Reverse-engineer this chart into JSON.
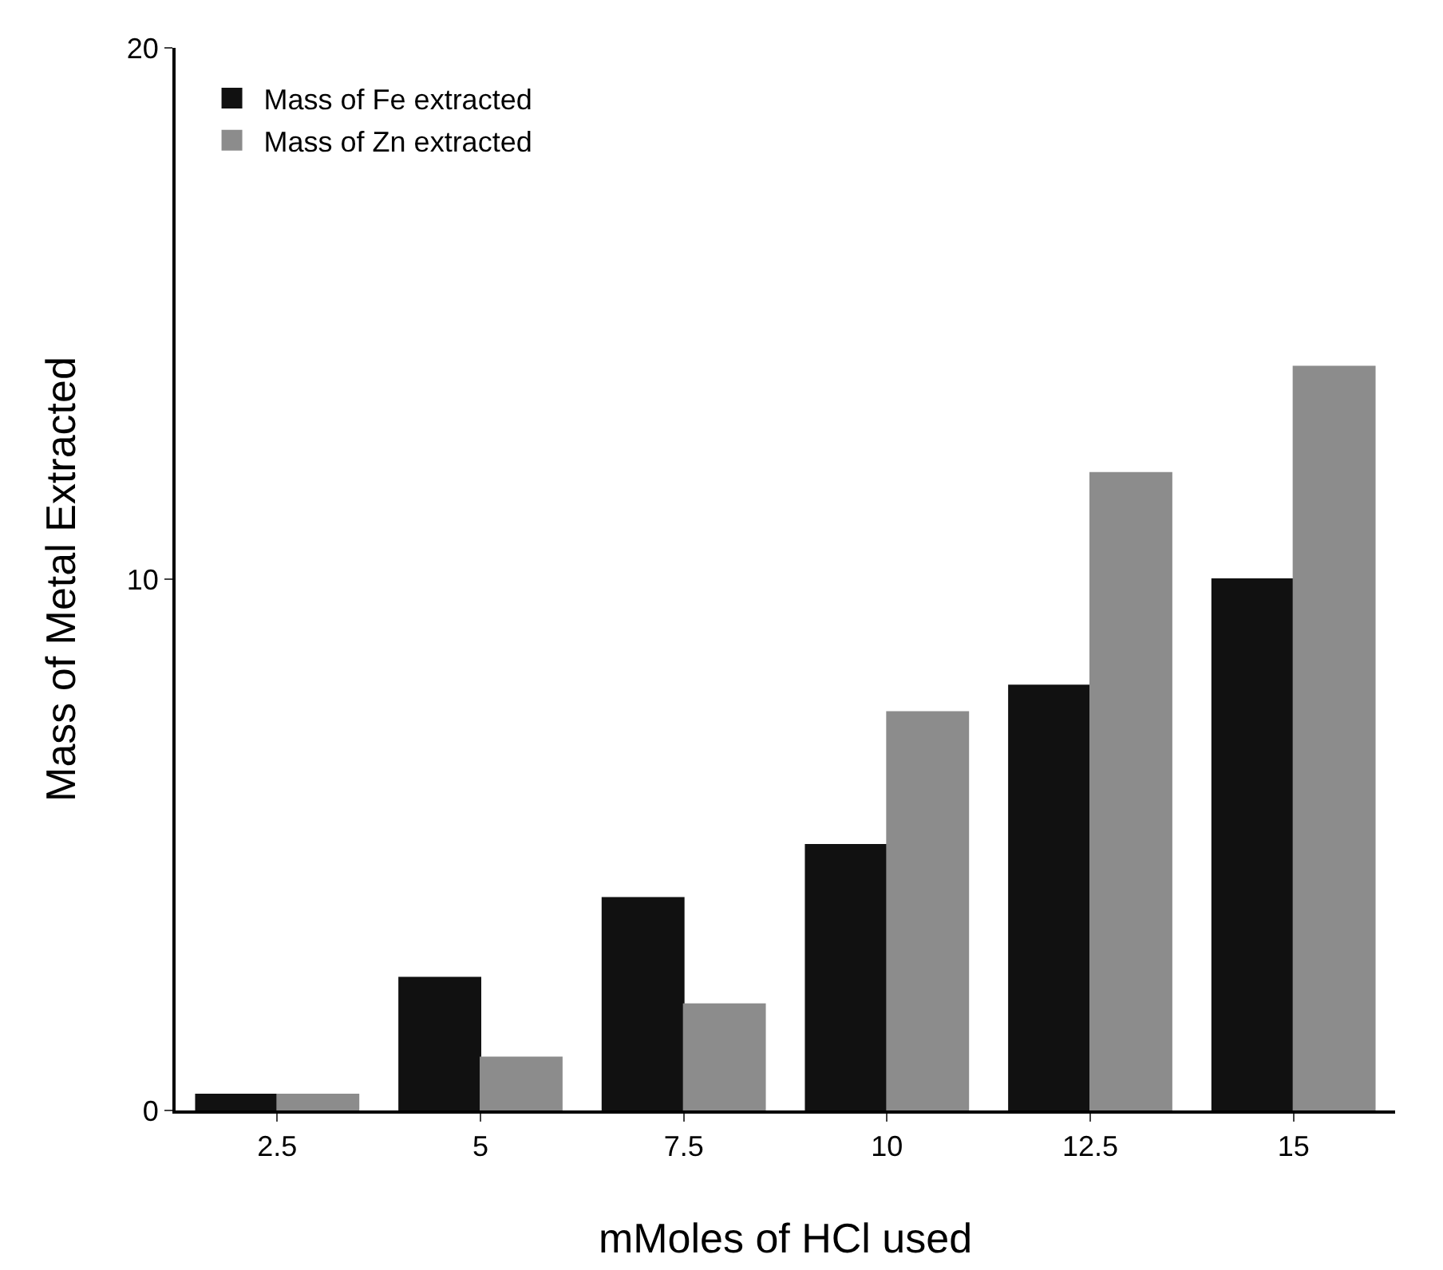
{
  "chart_data": {
    "type": "bar",
    "xlabel": "mMoles of HCl used",
    "ylabel": "Mass of Metal Extracted",
    "categories": [
      "2.5",
      "5",
      "7.5",
      "10",
      "12.5",
      "15"
    ],
    "series": [
      {
        "name": "Mass of Fe extracted",
        "color": "#111111",
        "values": [
          0.3,
          2.5,
          4.0,
          5.0,
          8.0,
          10.0
        ]
      },
      {
        "name": "Mass of Zn extracted",
        "color": "#8c8c8c",
        "values": [
          0.3,
          1.0,
          2.0,
          7.5,
          12.0,
          14.0
        ]
      }
    ],
    "ylim": [
      0,
      20
    ],
    "yticks": [
      0,
      10,
      20
    ],
    "grid": false,
    "legend": "top left"
  }
}
